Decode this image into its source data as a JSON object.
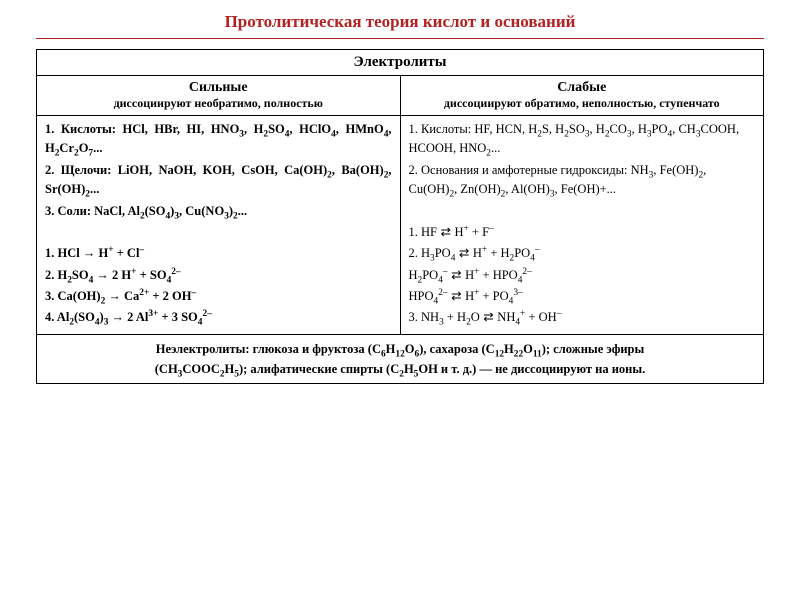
{
  "title": {
    "text": "Протолитическая теория кислот и оснований",
    "color": "#b22222"
  },
  "rule_color": "#b22222",
  "table": {
    "header": "Электролиты",
    "strong": {
      "title": "Сильные",
      "subtitle": "диссоциируют необратимо, полностью",
      "examples": {
        "l1": "1. Кислоты: HCl, HBr, HI, HNO",
        "l1b": ", H",
        "l1c": "SO",
        "l1d": ", HClO",
        "l1e": ", HMnO",
        "l1f": ", H",
        "l1g": "Cr",
        "l1h": "O",
        "l1i": "...",
        "l2": "2. Щелочи: LiOH, NaOH, KOH, CsOH, Ca(OH)",
        "l2b": ", Ba(OH)",
        "l2c": ", Sr(OH)",
        "l2d": "...",
        "l3": "3. Соли: NaCl, Al",
        "l3b": "(SO",
        "l3c": ")",
        "l3d": ", Cu(NO",
        "l3e": ")",
        "l3f": "..."
      },
      "eq": {
        "e1a": "1. HCl   →   H",
        "e1b": " + Cl",
        "e2a": "2. H",
        "e2b": "SO",
        "e2c": "   →   2 H",
        "e2d": " + SO",
        "e3a": "3. Ca(OH)",
        "e3b": "   →   Ca",
        "e3c": " + 2 OH",
        "e4a": "4. Al",
        "e4b": "(SO",
        "e4c": ")",
        "e4d": "   →   2 Al",
        "e4e": " + 3 SO"
      }
    },
    "weak": {
      "title": "Слабые",
      "subtitle": "диссоциируют обратимо, неполностью, ступенчато",
      "examples": {
        "l1": "1. Кислоты: HF, HCN, H",
        "l1b": "S, H",
        "l1c": "SO",
        "l1d": ", H",
        "l1e": "CO",
        "l1f": ", H",
        "l1g": "PO",
        "l1h": ", CH",
        "l1i": "COOH, HCOOH, HNO",
        "l1j": "...",
        "l2": "2. Основания и амфотерные гидроксиды: NH",
        "l2b": ", Fe(OH)",
        "l2c": ", Cu(OH)",
        "l2d": ", Zn(OH)",
        "l2e": ", Al(OH)",
        "l2f": ", Fe(OH)+..."
      },
      "eq": {
        "e1a": "1. HF   ",
        "e1b": "   H",
        "e1c": " + F",
        "e2a": "2. H",
        "e2b": "PO",
        "e2c": "   ",
        "e2d": "   H",
        "e2e": " + H",
        "e2f": "PO",
        "e3a": "    H",
        "e3b": "PO",
        "e3c": "   ",
        "e3d": "   H",
        "e3e": " + HPO",
        "e4a": "    HPO",
        "e4b": "   ",
        "e4c": "   H",
        "e4d": " + PO",
        "e5a": "3. NH",
        "e5b": " + H",
        "e5c": "O  ",
        "e5d": "   NH",
        "e5e": " + OH"
      }
    },
    "non_electrolytes": {
      "line1a": "Неэлектролиты: глюкоза и фруктоза (C",
      "line1b": "H",
      "line1c": "O",
      "line1d": "), сахароза (C",
      "line1e": "H",
      "line1f": "O",
      "line1g": "); сложные эфиры",
      "line2a": "(CH",
      "line2b": "COOC",
      "line2c": "H",
      "line2d": "); алифатические спирты (C",
      "line2e": "H",
      "line2f": "OH и т. д.) — не диссоциируют на ионы."
    }
  },
  "glyphs": {
    "rевers": "⇄"
  }
}
